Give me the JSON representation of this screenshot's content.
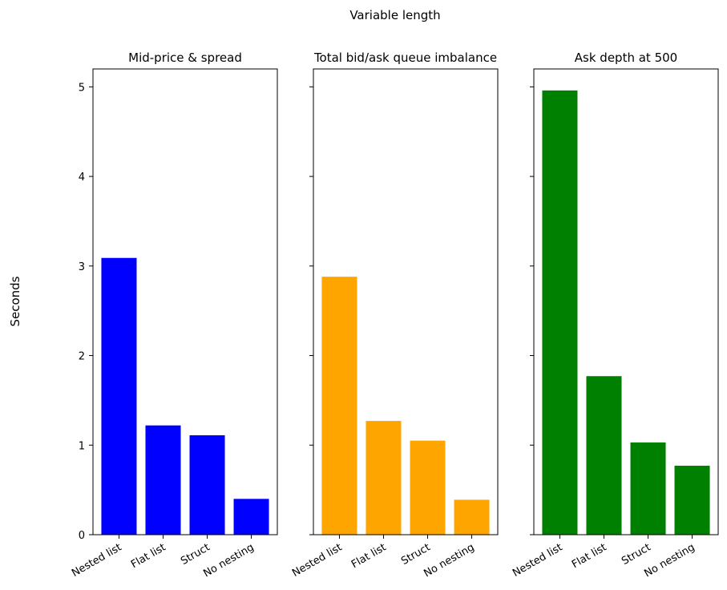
{
  "figure": {
    "suptitle": "Variable length",
    "ylabel": "Seconds"
  },
  "chart_data": [
    {
      "type": "bar",
      "title": "Mid-price & spread",
      "categories": [
        "Nested list",
        "Flat list",
        "Struct",
        "No nesting"
      ],
      "values": [
        3.09,
        1.22,
        1.11,
        0.4
      ],
      "color": "#0000ff",
      "ylim": [
        0,
        5.2
      ],
      "yticks": [
        0,
        1,
        2,
        3,
        4,
        5
      ],
      "ylabel": "Seconds",
      "grid": false,
      "sharey": true
    },
    {
      "type": "bar",
      "title": "Total bid/ask queue imbalance",
      "categories": [
        "Nested list",
        "Flat list",
        "Struct",
        "No nesting"
      ],
      "values": [
        2.88,
        1.27,
        1.05,
        0.39
      ],
      "color": "#ffa500",
      "ylim": [
        0,
        5.2
      ],
      "yticks": [
        0,
        1,
        2,
        3,
        4,
        5
      ],
      "grid": false,
      "sharey": true
    },
    {
      "type": "bar",
      "title": "Ask depth at 500",
      "categories": [
        "Nested list",
        "Flat list",
        "Struct",
        "No nesting"
      ],
      "values": [
        4.96,
        1.77,
        1.03,
        0.77
      ],
      "color": "#008000",
      "ylim": [
        0,
        5.2
      ],
      "yticks": [
        0,
        1,
        2,
        3,
        4,
        5
      ],
      "grid": false,
      "sharey": true
    }
  ]
}
